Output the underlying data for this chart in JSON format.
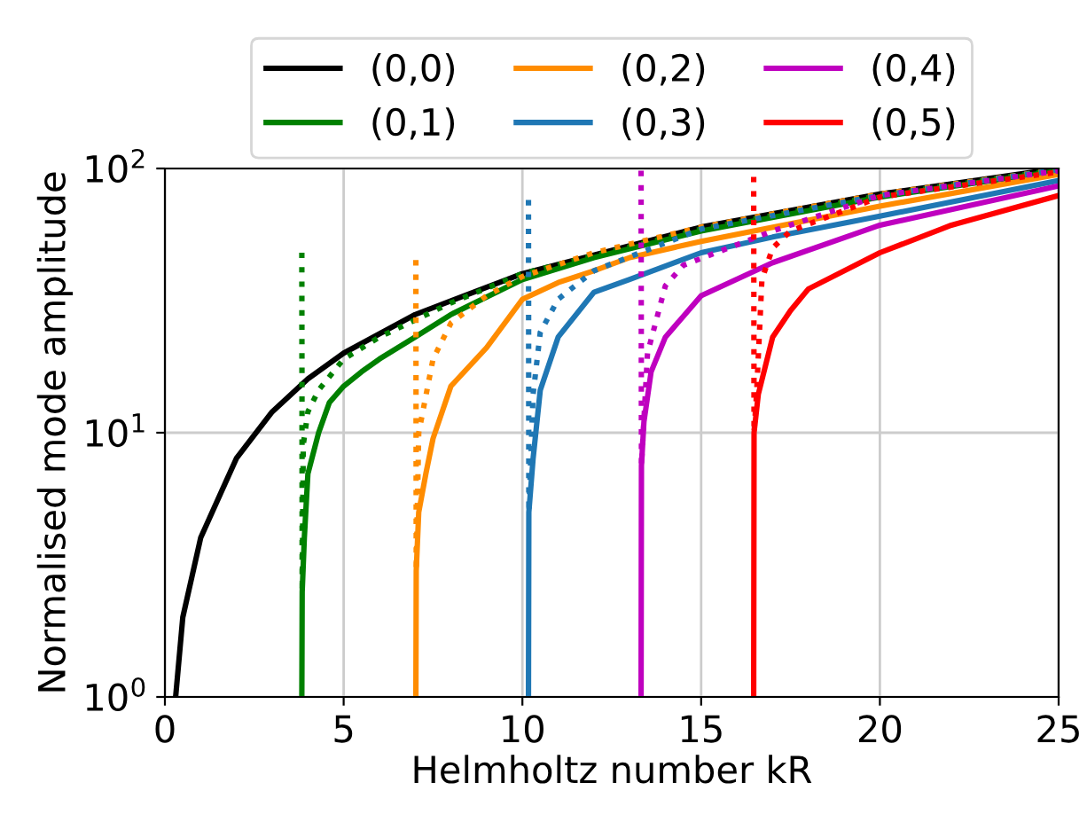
{
  "chart_data": {
    "type": "line",
    "xlabel": "Helmholtz number kR",
    "ylabel": "Normalised mode amplitude",
    "log": "y",
    "xlim": [
      0,
      25
    ],
    "ylim": [
      1,
      100
    ],
    "xticks": [
      0,
      5,
      10,
      15,
      20,
      25
    ],
    "yticks": [
      {
        "value": 1,
        "label": "10$^{0}$"
      },
      {
        "value": 10,
        "label": "10$^{1}$"
      },
      {
        "value": 100,
        "label": "10$^{2}$"
      }
    ],
    "grid": true,
    "legend": "top",
    "marker": "none",
    "line_style": "solid",
    "series": [
      {
        "name": "(0,0)",
        "color": "#000000",
        "x": [
          0.3,
          0.5,
          1,
          2,
          3,
          4,
          5,
          7,
          10,
          15,
          20,
          25
        ],
        "values": [
          1,
          2,
          4,
          8,
          12,
          16,
          20,
          28,
          40,
          60,
          80,
          100
        ]
      },
      {
        "name": "(0,1)",
        "color": "#008000",
        "x": [
          3.83,
          3.84,
          3.9,
          4.0,
          4.3,
          4.6,
          5,
          5.5,
          6,
          7,
          8,
          10,
          12,
          15,
          20,
          25
        ],
        "values": [
          1,
          2.5,
          4,
          7,
          10,
          13,
          15,
          17,
          19,
          23,
          28,
          38,
          46,
          58,
          78,
          98
        ]
      },
      {
        "name": "(0,2)",
        "color": "#ff8c00",
        "x": [
          7.02,
          7.03,
          7.1,
          7.3,
          7.5,
          8,
          9,
          10,
          11,
          12,
          13,
          15,
          20,
          25
        ],
        "values": [
          1,
          3,
          5,
          7,
          9.5,
          15,
          21,
          32,
          37,
          41,
          46,
          53,
          72,
          95
        ]
      },
      {
        "name": "(0,3)",
        "color": "#1f77b4",
        "x": [
          10.17,
          10.18,
          10.3,
          10.5,
          11,
          12,
          13,
          15,
          17,
          20,
          25
        ],
        "values": [
          1,
          5,
          8,
          14.5,
          23,
          34,
          38,
          48,
          55,
          66,
          90
        ]
      },
      {
        "name": "(0,4)",
        "color": "#bf00bf",
        "x": [
          13.32,
          13.33,
          13.4,
          13.6,
          14,
          15,
          17,
          20,
          25
        ],
        "values": [
          1,
          7.5,
          11,
          17,
          23,
          33,
          44,
          61,
          86
        ]
      },
      {
        "name": "(0,5)",
        "color": "#ff0000",
        "x": [
          16.47,
          16.48,
          16.6,
          17,
          17.5,
          18,
          20,
          22,
          25
        ],
        "values": [
          1,
          10,
          14,
          23,
          29,
          35,
          48,
          61,
          79
        ]
      },
      {
        "color": "#008000",
        "line_style": "dotted",
        "x": [
          3.83,
          3.84,
          3.87,
          4.0,
          4.3,
          5,
          6,
          8,
          10,
          15,
          20,
          25
        ],
        "values": [
          48,
          2.5,
          9,
          12,
          14.5,
          19,
          23,
          31,
          40,
          59,
          79,
          99
        ]
      },
      {
        "color": "#ff8c00",
        "line_style": "dotted",
        "x": [
          7.02,
          7.03,
          7.1,
          7.5,
          8,
          9,
          10,
          12,
          15,
          20,
          25
        ],
        "values": [
          45,
          3,
          10,
          19,
          26,
          33,
          39,
          48,
          60,
          80,
          99
        ]
      },
      {
        "color": "#1f77b4",
        "line_style": "dotted",
        "x": [
          10.17,
          10.18,
          10.3,
          10.5,
          11,
          12,
          15,
          20,
          25
        ],
        "values": [
          76,
          5,
          14,
          24,
          32,
          41,
          59,
          79,
          99
        ]
      },
      {
        "color": "#bf00bf",
        "line_style": "dotted",
        "x": [
          13.32,
          13.33,
          13.5,
          14,
          14.5,
          17,
          20,
          25
        ],
        "values": [
          98,
          7.5,
          20,
          36,
          43,
          58,
          79,
          98
        ]
      },
      {
        "color": "#ff0000",
        "line_style": "dotted",
        "x": [
          16.47,
          16.48,
          16.55,
          16.7,
          17,
          17.5,
          20,
          25
        ],
        "values": [
          93,
          10,
          14,
          38,
          50,
          58,
          78,
          97
        ]
      }
    ]
  }
}
